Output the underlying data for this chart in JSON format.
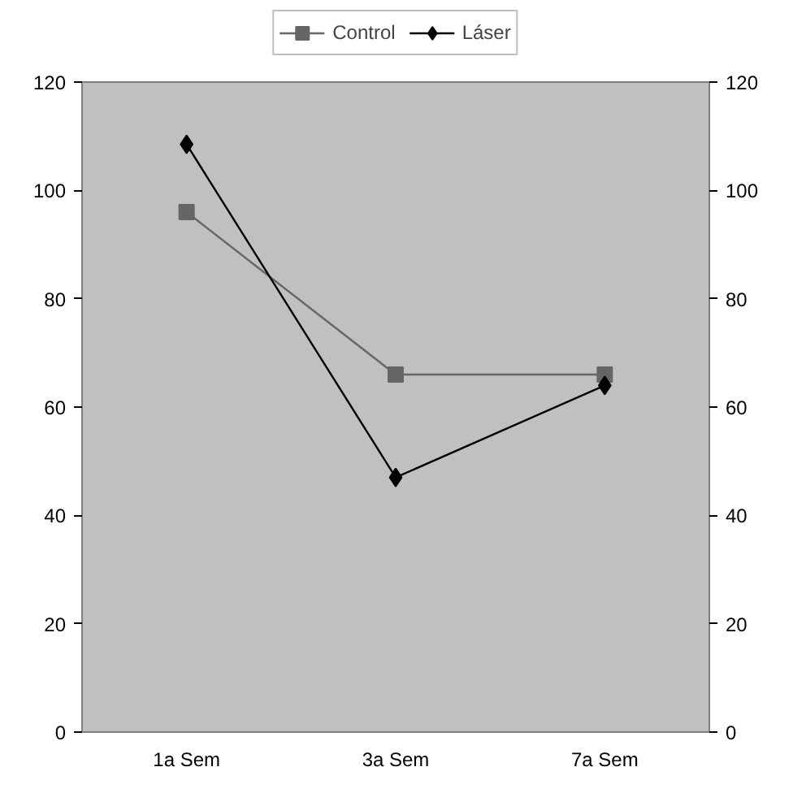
{
  "chart_data": {
    "type": "line",
    "categories": [
      "1a Sem",
      "3a Sem",
      "7a Sem"
    ],
    "series": [
      {
        "name": "Control",
        "color": "#666666",
        "values": [
          96,
          66,
          66
        ],
        "marker": "square"
      },
      {
        "name": "Láser",
        "color": "#000000",
        "values": [
          108.5,
          47,
          64
        ],
        "marker": "diamond"
      }
    ],
    "ylim": [
      0,
      120
    ],
    "yticks": [
      0,
      20,
      40,
      60,
      80,
      100,
      120
    ],
    "y2lim": [
      0,
      120
    ],
    "y2ticks": [
      0,
      20,
      40,
      60,
      80,
      100,
      120
    ],
    "legend": "top",
    "grid": false
  }
}
